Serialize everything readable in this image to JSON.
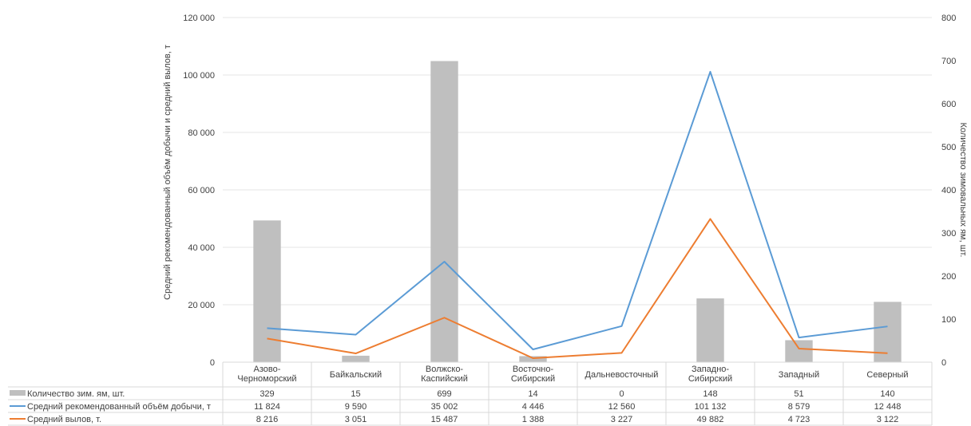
{
  "chart_data": {
    "type": "bar",
    "categories": [
      [
        "Азово-",
        "Черноморский"
      ],
      [
        "Байкальский"
      ],
      [
        "Волжско-",
        "Каспийский"
      ],
      [
        "Восточно-",
        "Сибирский"
      ],
      [
        "Дальневосточный"
      ],
      [
        "Западно-",
        "Сибирский"
      ],
      [
        "Западный"
      ],
      [
        "Северный"
      ]
    ],
    "y_left": {
      "label": "Средний рекомендованный объём добычи и средний вылов, т",
      "ylim": [
        0,
        120000
      ],
      "ticks": [
        "0",
        "20 000",
        "40 000",
        "60 000",
        "80 000",
        "100 000",
        "120 000"
      ]
    },
    "y_right": {
      "label": "Количество зимовальных ям, шт.",
      "ylim": [
        0,
        800
      ],
      "ticks": [
        "0",
        "100",
        "200",
        "300",
        "400",
        "500",
        "600",
        "700",
        "800"
      ]
    },
    "grid": true,
    "legend": "data-table-below",
    "series": [
      {
        "name": "Количество зим. ям, шт.",
        "type": "bar",
        "axis": "right",
        "color": "#BFBFBF",
        "values": [
          329,
          15,
          699,
          14,
          0,
          148,
          51,
          140
        ],
        "labels": [
          "329",
          "15",
          "699",
          "14",
          "0",
          "148",
          "51",
          "140"
        ]
      },
      {
        "name": "Средний рекомендованный объём добычи, т",
        "type": "line",
        "axis": "left",
        "color": "#5B9BD5",
        "values": [
          11824,
          9590,
          35002,
          4446,
          12560,
          101132,
          8579,
          12448
        ],
        "labels": [
          "11 824",
          "9 590",
          "35 002",
          "4 446",
          "12 560",
          "101 132",
          "8 579",
          "12 448"
        ]
      },
      {
        "name": "Средний вылов, т.",
        "type": "line",
        "axis": "left",
        "color": "#ED7D31",
        "values": [
          8216,
          3051,
          15487,
          1388,
          3227,
          49882,
          4723,
          3122
        ],
        "labels": [
          "8 216",
          "3 051",
          "15 487",
          "1 388",
          "3 227",
          "49 882",
          "4 723",
          "3 122"
        ]
      }
    ]
  }
}
